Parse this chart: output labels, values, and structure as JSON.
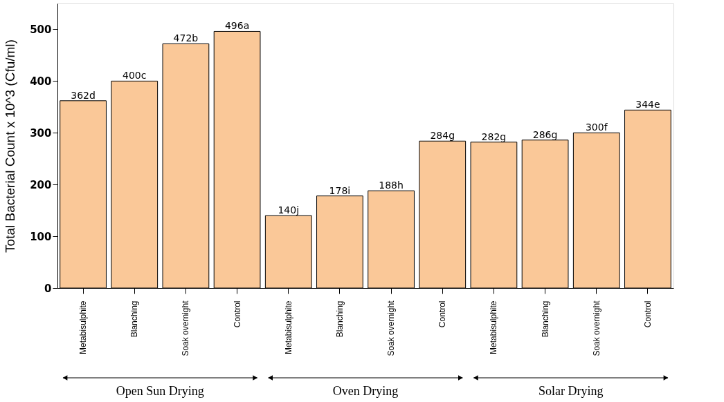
{
  "chart_data": {
    "type": "bar",
    "ylabel": "Total Bacterial Count x 10^3 (Cfu/ml)",
    "categories": [
      "Metabisulphite",
      "Blanching",
      "Soak overnight",
      "Control",
      "Metabisulphite",
      "Blanching",
      "Soak overnight",
      "Control",
      "Metabisulphite",
      "Blanching",
      "Soak overnight",
      "Control"
    ],
    "values": [
      362,
      400,
      472,
      496,
      140,
      178,
      188,
      284,
      282,
      286,
      300,
      344
    ],
    "value_labels": [
      "362d",
      "400c",
      "472b",
      "496a",
      "140j",
      "178i",
      "188h",
      "284g",
      "282g",
      "286g",
      "300f",
      "344e"
    ],
    "color": "#fac898",
    "ylim": [
      0,
      550
    ],
    "yticks": [
      0,
      100,
      200,
      300,
      400,
      500
    ],
    "grid": false,
    "annotations": [
      "Open Sun Drying",
      "Oven Drying",
      "Solar Drying"
    ]
  }
}
